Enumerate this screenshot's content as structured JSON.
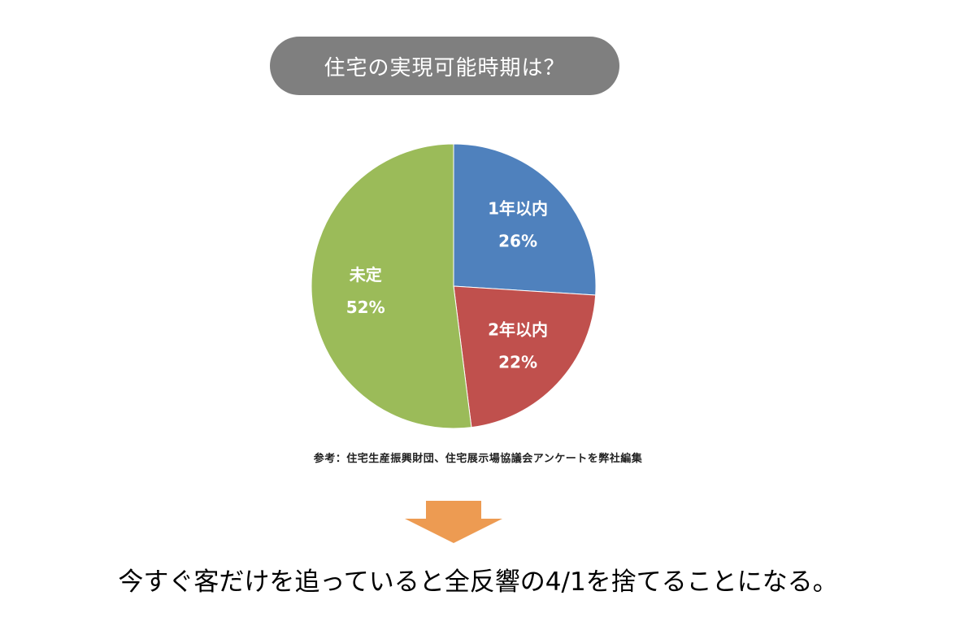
{
  "title": "住宅の実現可能時期は？",
  "chart_data": {
    "type": "pie",
    "categories": [
      "1年以内",
      "2年以内",
      "未定"
    ],
    "values": [
      26,
      22,
      52
    ],
    "value_labels": [
      "26%",
      "22%",
      "52%"
    ],
    "colors": [
      "#4f81bd",
      "#c0504d",
      "#9bbb59"
    ],
    "start_angle": "12 o'clock, clockwise",
    "legend": "none (labels inside slices)"
  },
  "source_note": "参考：住宅生産振興財団、住宅展示場協議会アンケートを弊社編集",
  "arrow": {
    "icon": "down-arrow-icon",
    "color": "#ed9b52"
  },
  "conclusion": "今すぐ客だけを追っていると全反響の4/1を捨てることになる。"
}
